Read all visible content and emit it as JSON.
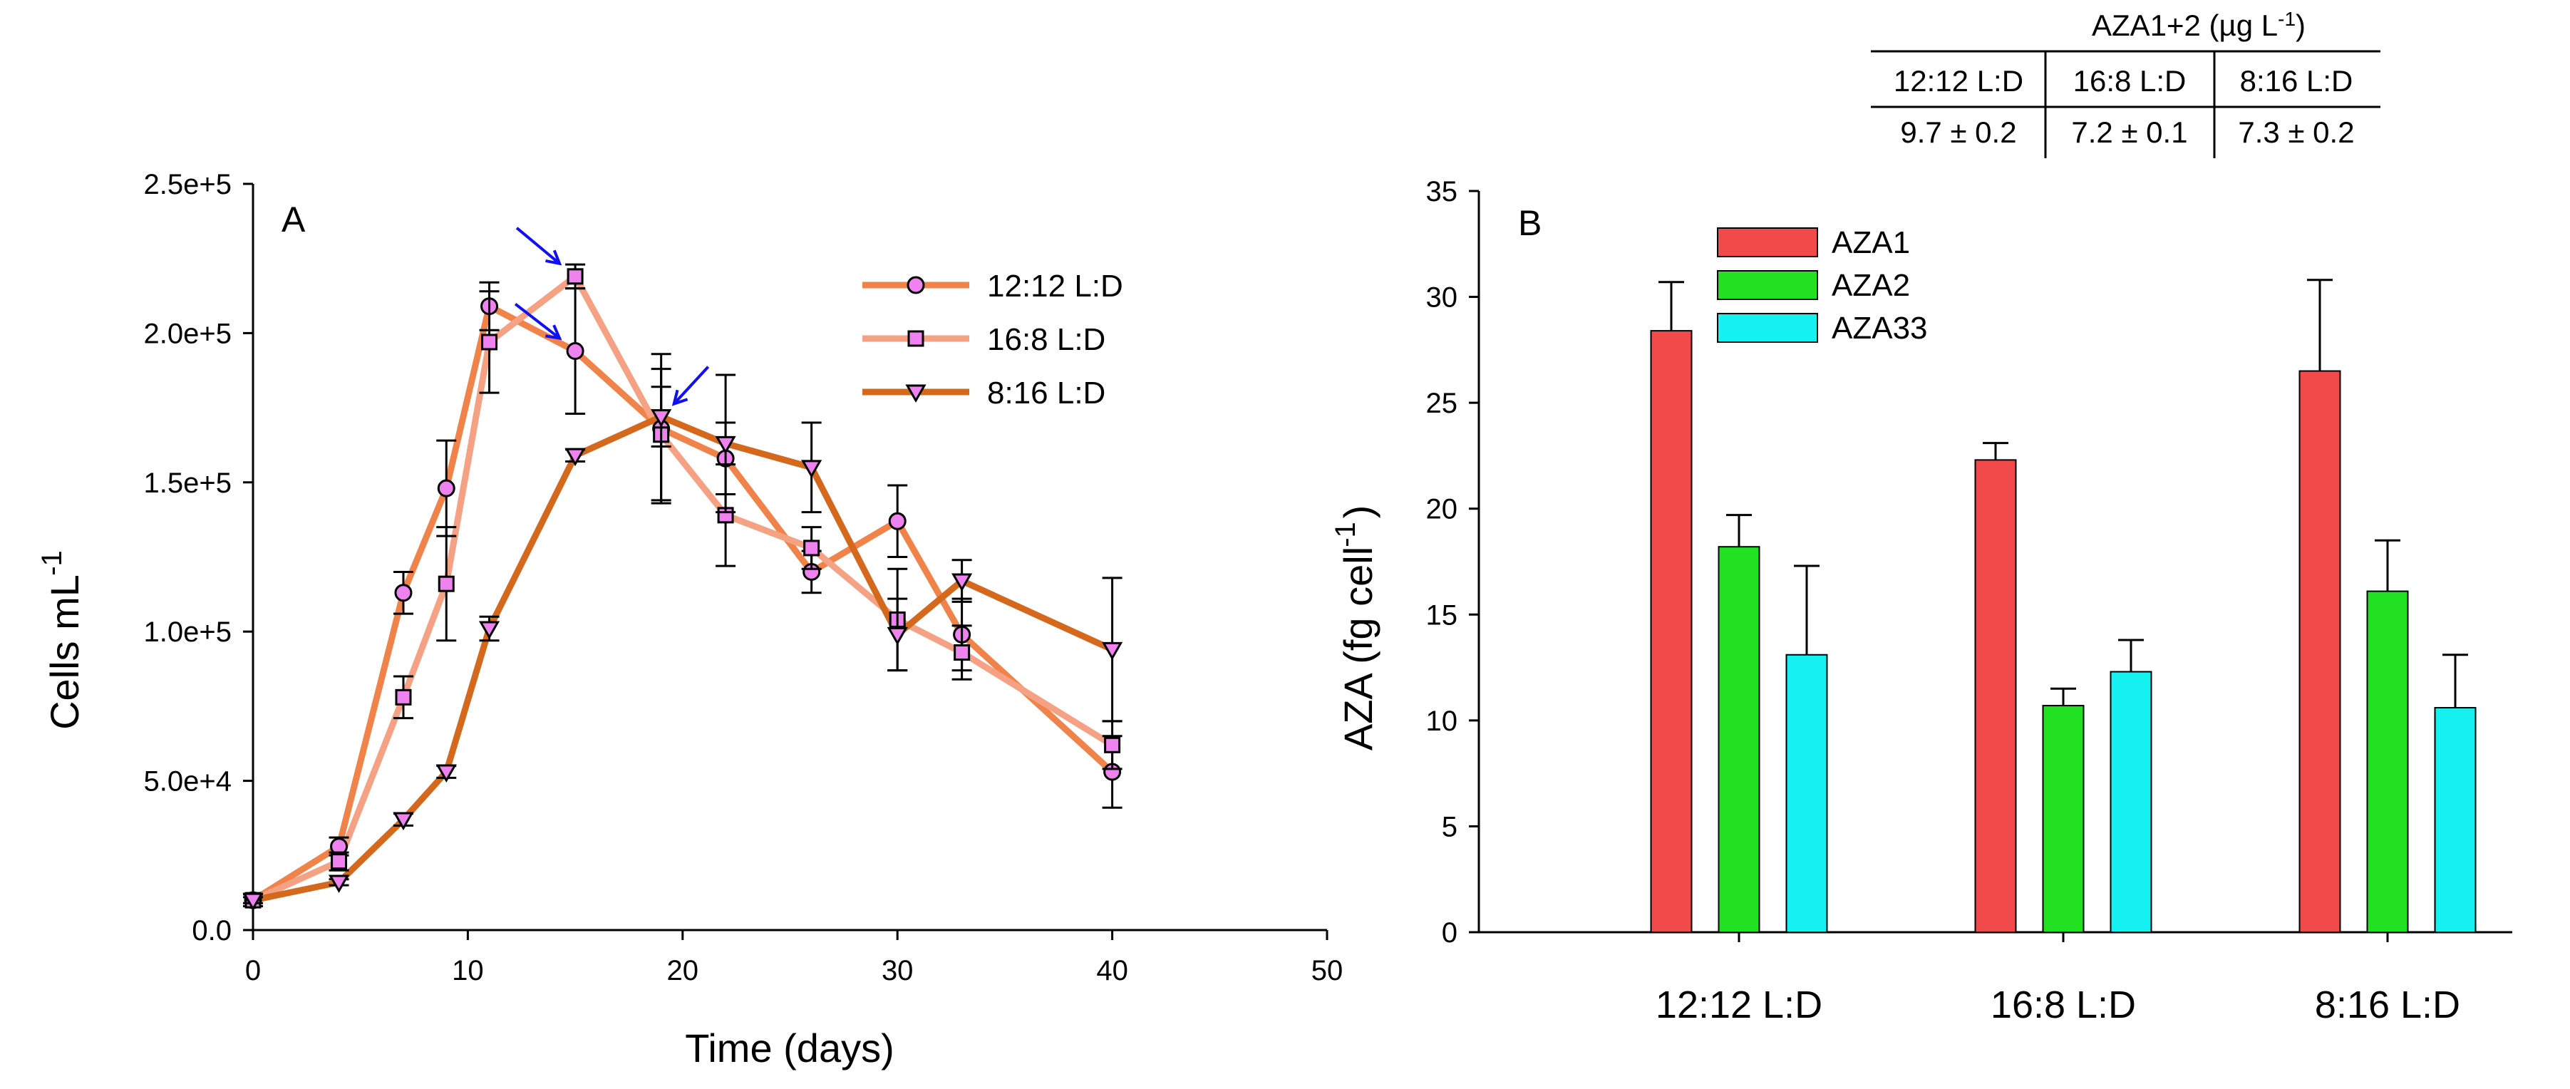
{
  "chart_data": [
    {
      "type": "line",
      "panel_label": "A",
      "xlabel": "Time (days)",
      "ylabel": "Cells mL",
      "ylabel_sup": "-1",
      "xlim": [
        0,
        50
      ],
      "ylim": [
        0,
        250000
      ],
      "x_ticks": [
        "0",
        "10",
        "20",
        "30",
        "40",
        "50"
      ],
      "y_ticks": [
        "0.0",
        "5.0e+4",
        "1.0e+5",
        "1.5e+5",
        "2.0e+5",
        "2.5e+5"
      ],
      "series": [
        {
          "name": "12:12 L:D",
          "marker": "circle",
          "color": "#F0834A",
          "x": [
            0,
            4,
            7,
            9,
            11,
            15,
            19,
            22,
            26,
            30,
            33,
            40
          ],
          "y": [
            10000,
            28000,
            113000,
            148000,
            209000,
            194000,
            168000,
            158000,
            120000,
            137000,
            99000,
            53000
          ],
          "err": [
            2000,
            3000,
            7000,
            16000,
            8000,
            21000,
            25000,
            12000,
            7000,
            12000,
            12000,
            12000
          ]
        },
        {
          "name": "16:8 L:D",
          "marker": "square",
          "color": "#F5A284",
          "x": [
            0,
            4,
            7,
            9,
            11,
            15,
            19,
            22,
            26,
            30,
            33,
            40
          ],
          "y": [
            10000,
            23000,
            78000,
            116000,
            197000,
            219000,
            166000,
            139000,
            128000,
            104000,
            93000,
            62000
          ],
          "err": [
            2000,
            3000,
            7000,
            19000,
            17000,
            4000,
            22000,
            17000,
            7000,
            17000,
            9000,
            8000
          ]
        },
        {
          "name": "8:16 L:D",
          "marker": "triangle",
          "color": "#D4691E",
          "x": [
            0,
            4,
            7,
            9,
            11,
            15,
            19,
            22,
            26,
            30,
            33,
            40
          ],
          "y": [
            10000,
            16000,
            37000,
            53000,
            101000,
            159000,
            172000,
            163000,
            155000,
            99000,
            117000,
            94000
          ],
          "err": [
            1000,
            1000,
            2000,
            2000,
            4000,
            2000,
            10000,
            23000,
            15000,
            12000,
            7000,
            24000
          ]
        }
      ],
      "arrows": [
        {
          "series": "16:8 L:D",
          "x": 15
        },
        {
          "series": "12:12 L:D",
          "x": 15
        },
        {
          "series": "8:16 L:D",
          "x": 19
        }
      ]
    },
    {
      "type": "bar",
      "panel_label": "B",
      "ylabel": "AZA (fg cell",
      "ylabel_sup": "-1",
      "ylabel_end": ")",
      "ylim": [
        0,
        35
      ],
      "y_ticks": [
        "0",
        "5",
        "10",
        "15",
        "20",
        "25",
        "30",
        "35"
      ],
      "categories": [
        "12:12 L:D",
        "16:8 L:D",
        "8:16 L:D"
      ],
      "series": [
        {
          "name": "AZA1",
          "color": "#F24A4A",
          "values": [
            28.4,
            22.3,
            26.5
          ],
          "err": [
            2.3,
            0.8,
            4.3
          ]
        },
        {
          "name": "AZA2",
          "color": "#22E022",
          "values": [
            18.2,
            10.7,
            16.1
          ],
          "err": [
            1.5,
            0.8,
            2.4
          ]
        },
        {
          "name": "AZA33",
          "color": "#15F0F0",
          "values": [
            13.1,
            12.3,
            10.6
          ],
          "err": [
            4.2,
            1.5,
            2.5
          ]
        }
      ]
    }
  ],
  "table": {
    "title": "AZA1+2 (µg L",
    "title_sup": "-1",
    "title_end": ")",
    "headers": [
      "12:12 L:D",
      "16:8 L:D",
      "8:16 L:D"
    ],
    "values": [
      "9.7 ± 0.2",
      "7.2 ± 0.1",
      "7.3 ± 0.2"
    ]
  }
}
